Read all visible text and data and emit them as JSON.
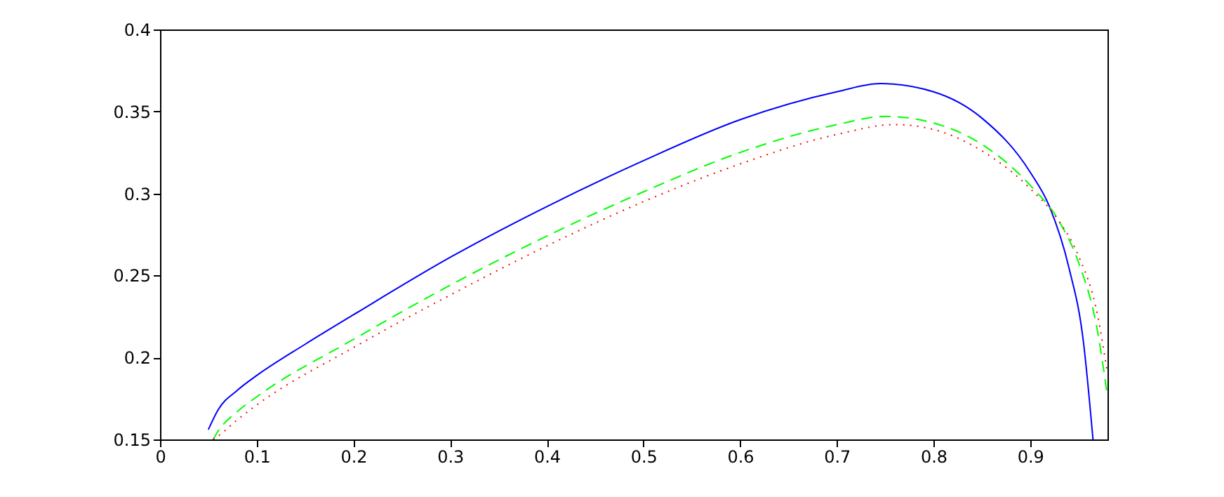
{
  "chart_data": {
    "type": "line",
    "xlim": [
      0,
      0.98
    ],
    "xticks": [
      0,
      0.1,
      0.2,
      0.3,
      0.4,
      0.5,
      0.6,
      0.7,
      0.8,
      0.9
    ],
    "ylim": [
      0.15,
      0.4
    ],
    "yticks": [
      0.15,
      0.2,
      0.25,
      0.3,
      0.35,
      0.4
    ],
    "grid": false,
    "series": [
      {
        "color": "#0000ff",
        "line_style": "solid",
        "x": [
          0.05,
          0.06,
          0.08,
          0.1,
          0.15,
          0.2,
          0.3,
          0.4,
          0.5,
          0.6,
          0.7,
          0.745,
          0.8,
          0.85,
          0.9,
          0.92,
          0.94,
          0.955,
          0.965
        ],
        "values": [
          0.156,
          0.168,
          0.18,
          0.189,
          0.208,
          0.226,
          0.261,
          0.292,
          0.32,
          0.345,
          0.362,
          0.367,
          0.362,
          0.346,
          0.313,
          0.292,
          0.255,
          0.21,
          0.15
        ]
      },
      {
        "color": "#00ff00",
        "line_style": "dashed",
        "x": [
          0.055,
          0.06,
          0.08,
          0.1,
          0.2,
          0.3,
          0.4,
          0.5,
          0.6,
          0.7,
          0.75,
          0.8,
          0.85,
          0.9,
          0.93,
          0.95,
          0.97,
          0.98
        ],
        "values": [
          0.15,
          0.155,
          0.167,
          0.176,
          0.211,
          0.244,
          0.274,
          0.301,
          0.325,
          0.342,
          0.347,
          0.343,
          0.33,
          0.305,
          0.283,
          0.258,
          0.215,
          0.176
        ]
      },
      {
        "color": "#ff0000",
        "line_style": "dotted",
        "x": [
          0.055,
          0.06,
          0.08,
          0.1,
          0.2,
          0.3,
          0.4,
          0.5,
          0.6,
          0.7,
          0.76,
          0.8,
          0.85,
          0.9,
          0.93,
          0.95,
          0.97,
          0.98
        ],
        "values": [
          0.15,
          0.152,
          0.162,
          0.171,
          0.206,
          0.238,
          0.268,
          0.295,
          0.318,
          0.336,
          0.342,
          0.339,
          0.326,
          0.303,
          0.283,
          0.262,
          0.225,
          0.19
        ]
      }
    ]
  }
}
